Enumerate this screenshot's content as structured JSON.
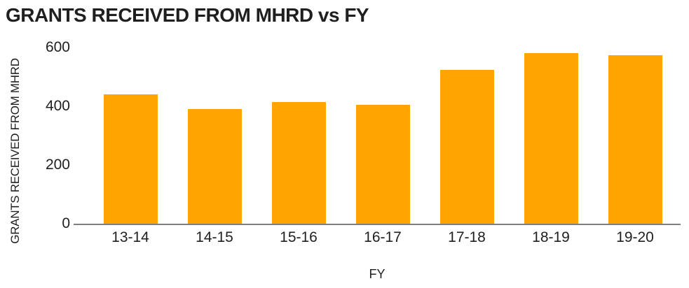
{
  "chart_data": {
    "type": "bar",
    "title": "GRANTS RECEIVED FROM MHRD vs FY",
    "xlabel": "FY",
    "ylabel": "GRANTS RECEIVED FROM MHRD",
    "categories": [
      "13-14",
      "14-15",
      "15-16",
      "16-17",
      "17-18",
      "18-19",
      "19-20"
    ],
    "values": [
      440,
      390,
      415,
      405,
      525,
      580,
      575
    ],
    "ylim": [
      0,
      600
    ],
    "yticks": [
      0,
      200,
      400,
      600
    ],
    "grid": false,
    "legend": false,
    "bar_color": "#FFA400",
    "axis_line_color": "#7F7F7F",
    "text_color": "#1F1F1F"
  }
}
